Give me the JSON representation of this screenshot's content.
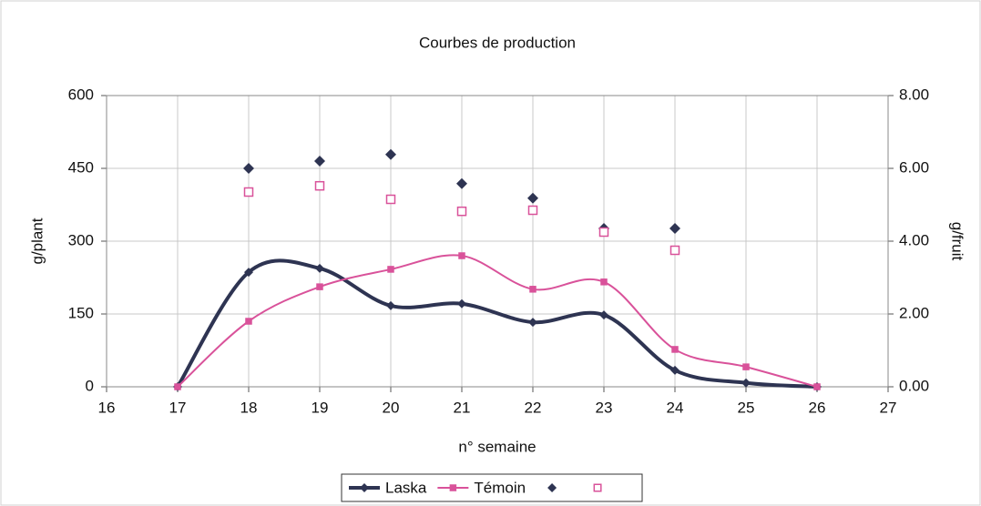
{
  "chart_data": {
    "type": "line",
    "title": "Courbes de production",
    "xlabel": "n° semaine",
    "ylabel": "g/plant",
    "y2label": "g/fruit",
    "x": [
      17,
      18,
      19,
      20,
      21,
      22,
      23,
      24,
      25,
      26
    ],
    "xlim": [
      16,
      27
    ],
    "xticks": [
      16,
      17,
      18,
      19,
      20,
      21,
      22,
      23,
      24,
      25,
      26,
      27
    ],
    "ylim": [
      0,
      600
    ],
    "yticks": [
      0,
      150,
      300,
      450,
      600
    ],
    "y2lim": [
      0,
      8
    ],
    "y2ticks": [
      {
        "value": 0,
        "label": "0.00"
      },
      {
        "value": 2,
        "label": "2.00"
      },
      {
        "value": 4,
        "label": "4.00"
      },
      {
        "value": 6,
        "label": "6.00"
      },
      {
        "value": 8,
        "label": "8.00"
      }
    ],
    "grid": true,
    "legend": "bottom",
    "series": [
      {
        "name": "Laska",
        "color": "#2e3452",
        "marker": "diamond",
        "line": true,
        "values": [
          0,
          236,
          244,
          167,
          171,
          133,
          148,
          34,
          8,
          0
        ]
      },
      {
        "name": "Témoin",
        "color": "#d9529a",
        "marker": "square",
        "line": true,
        "values": [
          0,
          135,
          206,
          242,
          270,
          201,
          216,
          77,
          41,
          0
        ]
      },
      {
        "name": null,
        "color": "#2e3452",
        "marker": "diamond",
        "line": false,
        "axis": "y2",
        "values": [
          null,
          6.0,
          6.2,
          6.38,
          5.58,
          5.18,
          4.35,
          4.35,
          null,
          null
        ]
      },
      {
        "name": null,
        "color": "#d9529a",
        "marker": "hollow-square",
        "line": false,
        "axis": "y2",
        "values": [
          null,
          5.35,
          5.52,
          5.15,
          4.82,
          4.85,
          4.25,
          3.75,
          null,
          null
        ]
      }
    ]
  }
}
